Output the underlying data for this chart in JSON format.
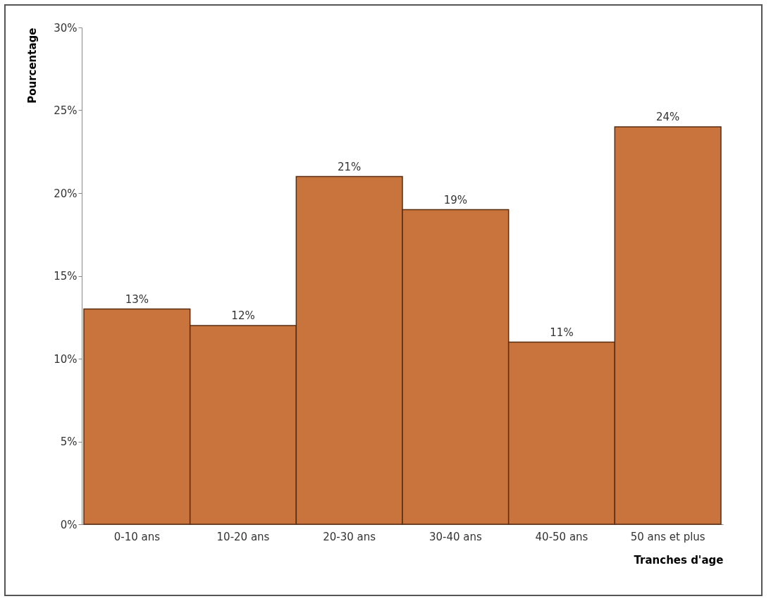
{
  "chart_data": {
    "type": "bar",
    "xlabel": "Tranches d'age",
    "ylabel": "Pourcentage",
    "categories": [
      "0-10 ans",
      "10-20 ans",
      "20-30 ans",
      "30-40 ans",
      "40-50 ans",
      "50 ans et plus"
    ],
    "values": [
      13,
      12,
      21,
      19,
      11,
      24
    ],
    "value_labels": [
      "13%",
      "12%",
      "21%",
      "19%",
      "11%",
      "24%"
    ],
    "color": "#c9743d",
    "ylim": [
      0,
      30
    ],
    "yticks": [
      {
        "value": 0,
        "label": "0%"
      },
      {
        "value": 5,
        "label": "5%"
      },
      {
        "value": 10,
        "label": "10%"
      },
      {
        "value": 15,
        "label": "15%"
      },
      {
        "value": 20,
        "label": "20%"
      },
      {
        "value": 25,
        "label": "25%"
      },
      {
        "value": 30,
        "label": "30%"
      }
    ],
    "grid": false
  }
}
